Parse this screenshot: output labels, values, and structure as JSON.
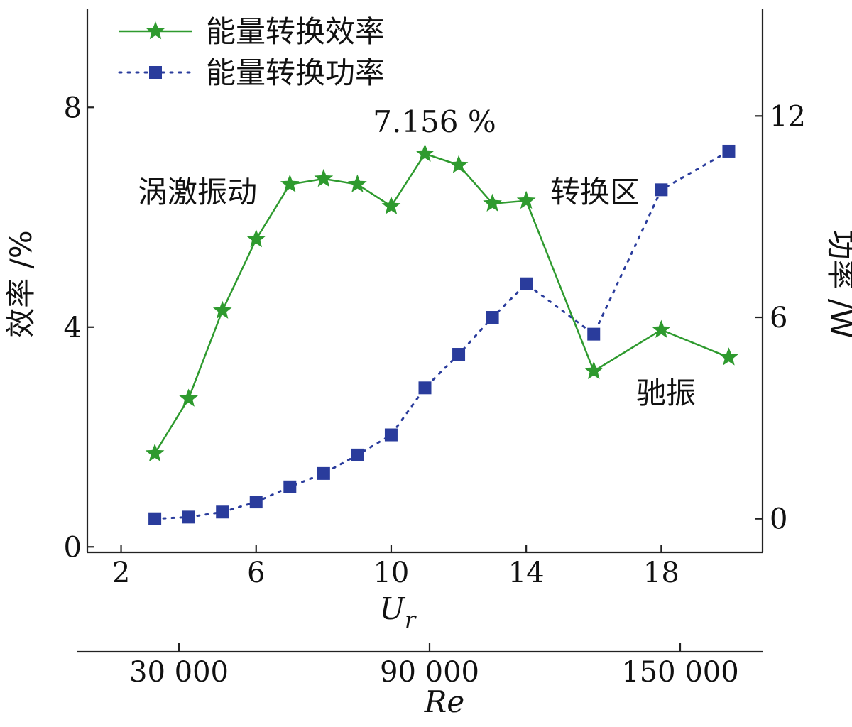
{
  "chart_data": {
    "type": "line",
    "x": [
      3,
      4,
      5,
      6,
      7,
      8,
      9,
      10,
      11,
      12,
      13,
      14,
      16,
      18,
      20
    ],
    "series": [
      {
        "name": "能量转换效率",
        "axis": "left",
        "marker": "star",
        "line_style": "solid",
        "color": "#2e9a2e",
        "values": [
          1.7,
          2.7,
          4.3,
          5.6,
          6.6,
          6.7,
          6.6,
          6.2,
          7.156,
          6.95,
          6.25,
          6.3,
          3.2,
          3.95,
          3.45
        ]
      },
      {
        "name": "能量转换功率",
        "axis": "right",
        "marker": "square",
        "line_style": "dotted",
        "color": "#2a3c9c",
        "values": [
          0.0,
          0.05,
          0.2,
          0.5,
          0.95,
          1.35,
          1.9,
          2.5,
          3.9,
          4.9,
          6.0,
          7.0,
          5.5,
          9.8,
          10.95
        ]
      }
    ],
    "xlabel": "U",
    "xlabel_sub": "r",
    "xlim": [
      1,
      21
    ],
    "xticks": [
      2,
      6,
      10,
      14,
      18
    ],
    "xticklabels": [
      "2",
      "6",
      "10",
      "14",
      "18"
    ],
    "ylabel_left": "效率 /%",
    "ylim_left": [
      -0.1,
      9.8
    ],
    "yticks_left": [
      0,
      4,
      8
    ],
    "yticklabels_left": [
      "0",
      "4",
      "8"
    ],
    "ylabel_right": "功率 /W",
    "ylim_right": [
      -1.0,
      15.2
    ],
    "yticks_right": [
      0,
      6,
      12
    ],
    "yticklabels_right": [
      "0",
      "6",
      "12"
    ],
    "secondary_xaxis": {
      "label": "Re",
      "ticks": [
        30000,
        90000,
        150000
      ],
      "ticklabels": [
        "30 000",
        "90 000",
        "150 000"
      ]
    },
    "annotations": {
      "peak": "7.156 %",
      "viv": "涡激振动",
      "transition": "转换区",
      "galloping": "驰振"
    },
    "legend": "top-left",
    "grid": false
  }
}
